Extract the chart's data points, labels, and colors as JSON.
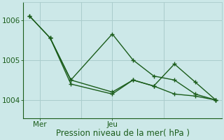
{
  "title": "Pression niveau de la mer( hPa )",
  "background_color": "#cce8e8",
  "plot_bg_color": "#cce8e8",
  "grid_color": "#aacccc",
  "line_color": "#1a5c1a",
  "xtick_labels": [
    "Mer",
    "Jeu"
  ],
  "ylabel_values": [
    1004,
    1005,
    1006
  ],
  "ylim": [
    1003.55,
    1006.45
  ],
  "lines": [
    {
      "x": [
        0,
        1,
        2,
        4,
        5,
        6,
        7,
        8,
        9
      ],
      "y": [
        1006.1,
        1005.55,
        1004.5,
        1005.65,
        1005.0,
        1004.6,
        1004.5,
        1004.15,
        1004.0
      ]
    },
    {
      "x": [
        1,
        2,
        4,
        5,
        6,
        7,
        8,
        9
      ],
      "y": [
        1005.55,
        1004.4,
        1004.15,
        1004.5,
        1004.35,
        1004.9,
        1004.45,
        1004.0
      ]
    },
    {
      "x": [
        0,
        1,
        2,
        4,
        5,
        6,
        7,
        8,
        9
      ],
      "y": [
        1006.1,
        1005.55,
        1004.5,
        1004.2,
        1004.5,
        1004.35,
        1004.15,
        1004.1,
        1004.0
      ]
    }
  ],
  "xlim": [
    -0.3,
    9.3
  ],
  "xtick_positions": [
    0.5,
    4.0
  ],
  "title_fontsize": 8.5,
  "tick_fontsize": 7.5,
  "line_width": 1.0,
  "marker_size": 4
}
